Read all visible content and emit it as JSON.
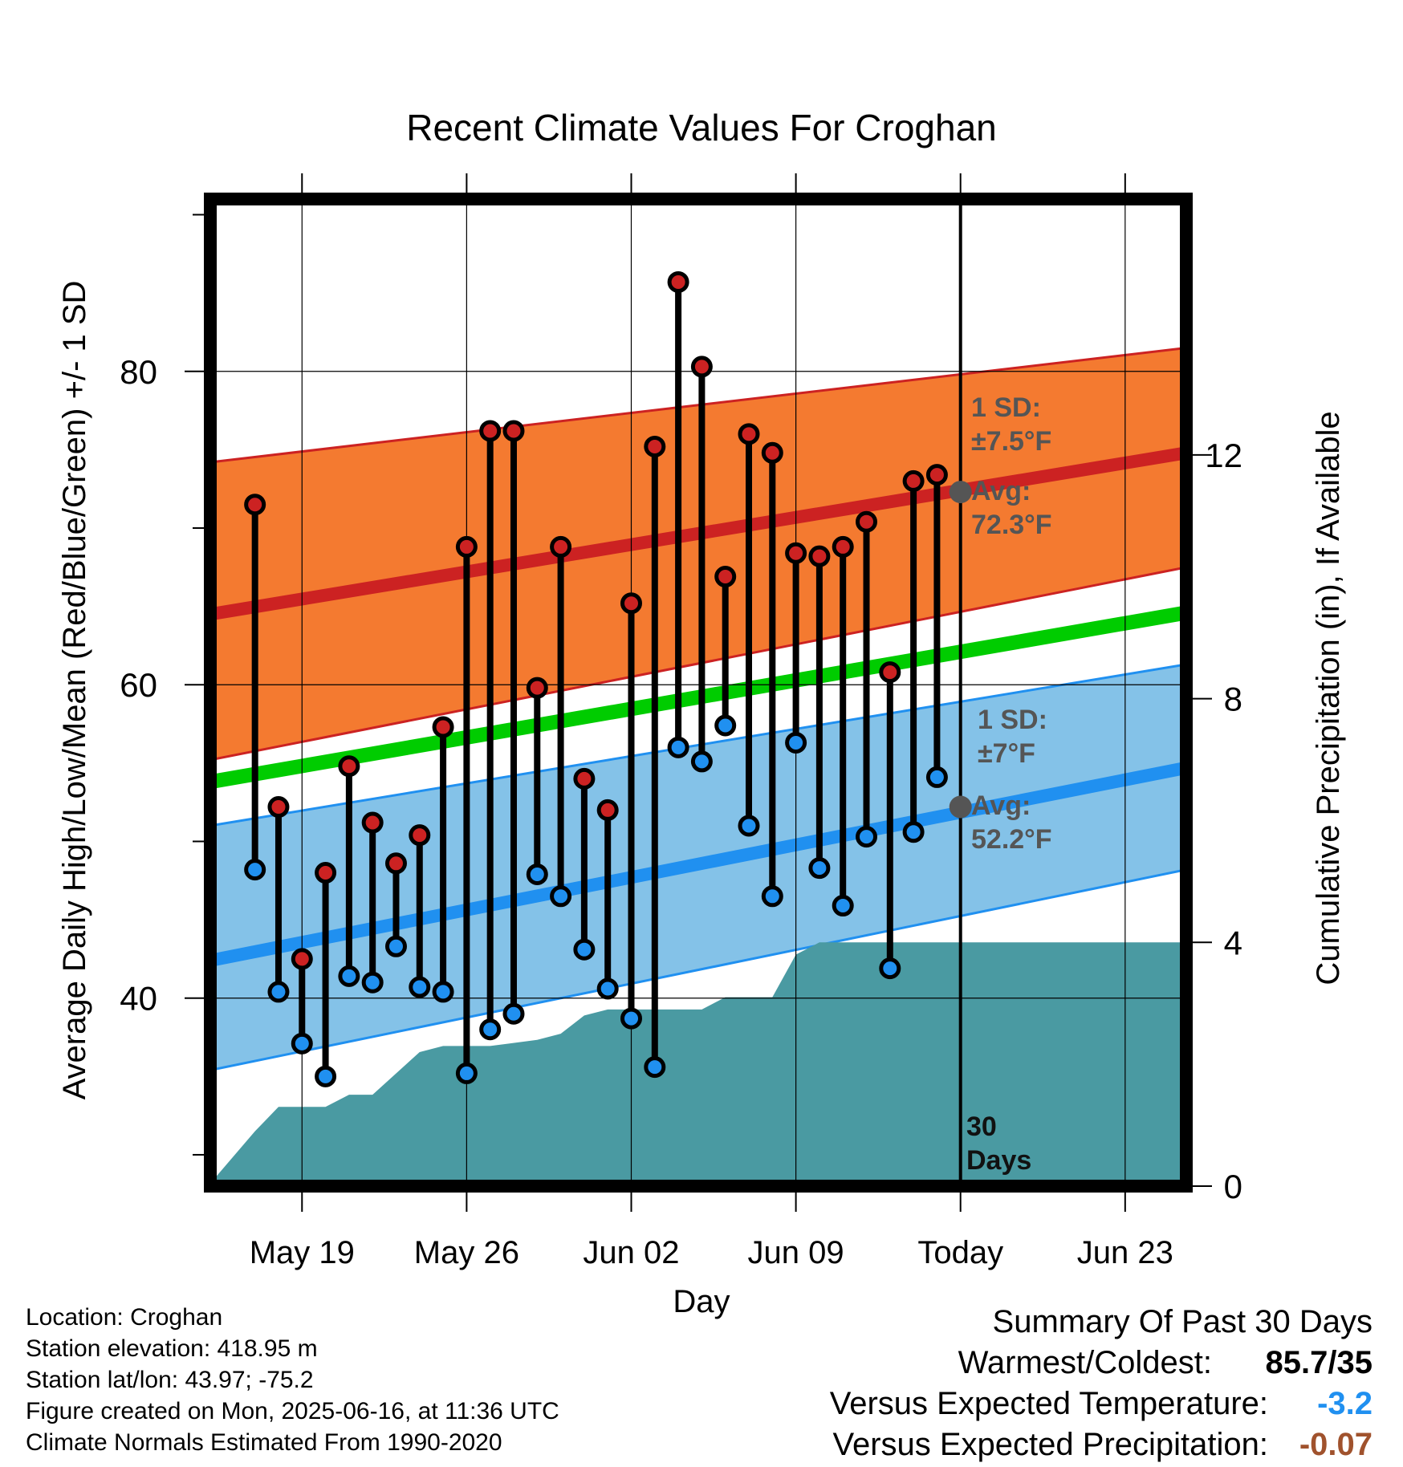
{
  "chart_data": {
    "type": "line",
    "title": "Recent Climate Values For Croghan",
    "xlabel": "Day",
    "ylabel": "Average Daily High/Low/Mean (Red/Blue/Green) +/- 1 SD",
    "y2label": "Cumulative Precipitation (in), If Available",
    "x_tick_labels": [
      "May 19",
      "May 26",
      "Jun 02",
      "Jun 09",
      "Today",
      "Jun 23"
    ],
    "x_range_days": [
      -31.9,
      9.6
    ],
    "ylim": [
      28,
      91
    ],
    "y_ticks": [
      40,
      60,
      80
    ],
    "y2lim": [
      0,
      16.2
    ],
    "y2_ticks": [
      0,
      4,
      8,
      12
    ],
    "grid": true,
    "normals": {
      "high_avg": [
        64.5,
        74.8
      ],
      "high_sd_upper": [
        74.2,
        81.5
      ],
      "high_sd_lower": [
        55.2,
        67.5
      ],
      "mean_avg": [
        53.8,
        64.6
      ],
      "low_avg": [
        42.4,
        54.7
      ],
      "low_sd_upper": [
        51.0,
        61.3
      ],
      "low_sd_lower": [
        35.4,
        48.2
      ]
    },
    "series": [
      {
        "name": "High",
        "color": "#cc2222",
        "x": [
          -30,
          -29,
          -28,
          -27,
          -26,
          -25,
          -24,
          -23,
          -22,
          -21,
          -20,
          -19,
          -18,
          -17,
          -16,
          -15,
          -14,
          -13,
          -12,
          -11,
          -10,
          -9,
          -8,
          -7,
          -6,
          -5,
          -4,
          -3,
          -2,
          -1
        ],
        "values": [
          71.5,
          52.2,
          42.5,
          48.0,
          54.8,
          51.2,
          48.6,
          50.4,
          57.3,
          68.8,
          76.2,
          76.2,
          59.8,
          68.8,
          54.0,
          52.0,
          65.2,
          75.2,
          85.7,
          80.3,
          66.9,
          76.0,
          74.8,
          68.4,
          68.2,
          68.8,
          70.4,
          60.8,
          73.0,
          73.4
        ]
      },
      {
        "name": "Low",
        "color": "#2090f0",
        "x": [
          -30,
          -29,
          -28,
          -27,
          -26,
          -25,
          -24,
          -23,
          -22,
          -21,
          -20,
          -19,
          -18,
          -17,
          -16,
          -15,
          -14,
          -13,
          -12,
          -11,
          -10,
          -9,
          -8,
          -7,
          -6,
          -5,
          -4,
          -3,
          -2,
          -1
        ],
        "values": [
          48.2,
          40.4,
          37.1,
          35.0,
          41.4,
          41.0,
          43.3,
          40.7,
          40.4,
          35.2,
          38.0,
          39.0,
          47.9,
          46.5,
          43.1,
          40.6,
          38.7,
          35.6,
          56.0,
          55.1,
          57.4,
          51.0,
          46.5,
          56.3,
          48.3,
          45.9,
          50.3,
          41.9,
          50.6,
          54.1
        ]
      },
      {
        "name": "Cumulative Precipitation",
        "color": "#4a9aa2",
        "x": [
          -32,
          -30,
          -29,
          -27,
          -26,
          -25,
          -23,
          -22,
          -20,
          -18,
          -17,
          -16,
          -15,
          -13,
          -12,
          -11,
          -10,
          -9,
          -8,
          -7,
          -6,
          -5,
          -4,
          -3,
          -2,
          -1,
          0,
          9.6
        ],
        "values": [
          0,
          0.9,
          1.3,
          1.3,
          1.5,
          1.5,
          2.2,
          2.3,
          2.3,
          2.4,
          2.5,
          2.8,
          2.9,
          2.9,
          2.9,
          2.9,
          3.1,
          3.1,
          3.1,
          3.8,
          4.0,
          4.0,
          4.0,
          4.0,
          4.0,
          4.0,
          4.0,
          4.0
        ]
      }
    ],
    "annotations": {
      "high_sd": [
        "1 SD:",
        "±7.5°F"
      ],
      "high_avg": [
        "Avg:",
        "72.3°F"
      ],
      "low_sd": [
        "1 SD:",
        "±7°F"
      ],
      "low_avg": [
        "Avg:",
        "52.2°F"
      ],
      "window": [
        "30",
        "Days"
      ]
    },
    "colors": {
      "high_band": "#f47a30",
      "high_line": "#cc2222",
      "mean_line": "#00cc00",
      "low_band": "#84c2e8",
      "low_line": "#2090f0",
      "precip": "#4a9aa2",
      "annotation_text": "#555555"
    }
  },
  "footer": {
    "location": "Location: Croghan",
    "elevation": "Station elevation: 418.95 m",
    "latlon": "Station lat/lon: 43.97; -75.2",
    "created": "Figure created on Mon, 2025-06-16, at 11:36 UTC",
    "normals": "Climate Normals Estimated From 1990-2020"
  },
  "summary": {
    "title": "Summary Of Past 30 Days",
    "warmest_label": "Warmest/Coldest:",
    "warmest_value": "85.7/35",
    "temp_label": "Versus Expected Temperature:",
    "temp_value": "-3.2",
    "temp_color": "#2090f0",
    "precip_label": "Versus Expected Precipitation:",
    "precip_value": "-0.07",
    "precip_color": "#a0522d"
  }
}
